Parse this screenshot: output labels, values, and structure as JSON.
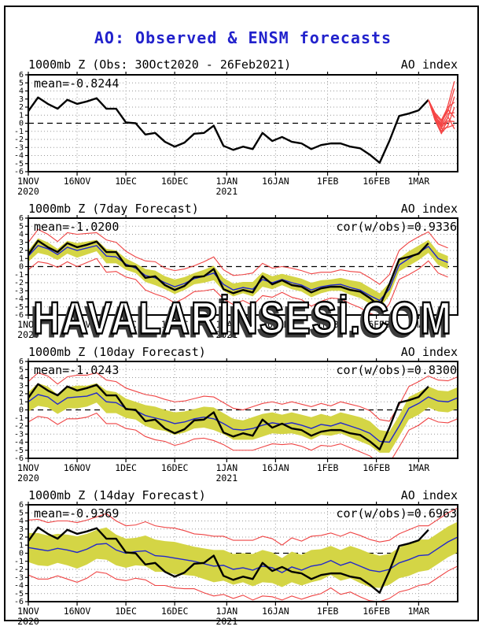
{
  "title": {
    "text": "AO: Observed & ENSM forecasts",
    "color": "#2222cc"
  },
  "watermark": {
    "text": "HAVALARİNSESİ.COM"
  },
  "colors": {
    "title": "#2222cc",
    "observed_line": "#000000",
    "ensemble_mean_line": "#2228cc",
    "spread_band": "#d4d545",
    "envelope_line": "#ef4444",
    "member_line": "#f54545",
    "gridline": "#999999",
    "zero_line": "#000000",
    "axis": "#000000"
  },
  "chart_data": {
    "type": "line",
    "y_axis": {
      "min": -6,
      "max": 6,
      "tick_step": 1,
      "tick_labels": [
        "6",
        "5",
        "4",
        "3",
        "2",
        "1",
        "0",
        "-1",
        "-2",
        "-3",
        "-4",
        "-5",
        "-6"
      ]
    },
    "x_axis": {
      "range_days": [
        0,
        132
      ],
      "ticks": [
        {
          "day": 0,
          "label": "1NOV",
          "year": "2020"
        },
        {
          "day": 15,
          "label": "16NOV"
        },
        {
          "day": 30,
          "label": "1DEC"
        },
        {
          "day": 45,
          "label": "16DEC"
        },
        {
          "day": 61,
          "label": "1JAN",
          "year": "2021"
        },
        {
          "day": 76,
          "label": "16JAN"
        },
        {
          "day": 92,
          "label": "1FEB"
        },
        {
          "day": 107,
          "label": "16FEB"
        },
        {
          "day": 120,
          "label": "1MAR"
        }
      ]
    },
    "observed": {
      "days_start": 0,
      "days_step": 3,
      "values": [
        1.5,
        3.2,
        2.4,
        1.8,
        2.9,
        2.4,
        2.7,
        3.1,
        1.8,
        1.8,
        0.1,
        0.0,
        -1.4,
        -1.2,
        -2.3,
        -2.9,
        -2.4,
        -1.3,
        -1.2,
        -0.3,
        -2.8,
        -3.3,
        -2.9,
        -3.2,
        -1.2,
        -2.2,
        -1.7,
        -2.3,
        -2.5,
        -3.2,
        -2.7,
        -2.5,
        -2.5,
        -2.9,
        -3.1,
        -3.9,
        -4.9,
        -2.2,
        0.9,
        1.2,
        1.6,
        2.9
      ]
    },
    "panels": [
      {
        "title_left": "1000mb Z (Obs: 30Oct2020 - 26Feb2021)",
        "title_right": "AO index",
        "mean_label": "mean=-0.8244",
        "cor_label": "",
        "forecast_members": {
          "days": [
            123,
            125,
            127,
            129,
            131
          ],
          "values": [
            [
              2.9,
              0.9,
              -0.2,
              2.2,
              5.2
            ],
            [
              2.9,
              1.1,
              0.2,
              1.5,
              4.3
            ],
            [
              2.9,
              0.7,
              -0.6,
              0.7,
              3.3
            ],
            [
              2.9,
              1.3,
              0.4,
              2.0,
              2.6
            ],
            [
              2.9,
              0.5,
              -1.2,
              -0.3,
              2.0
            ],
            [
              2.9,
              1.0,
              -0.4,
              1.2,
              1.3
            ],
            [
              2.9,
              0.8,
              0.0,
              1.7,
              0.7
            ],
            [
              2.9,
              0.6,
              -1.0,
              0.3,
              0.2
            ],
            [
              2.9,
              1.2,
              -0.7,
              -0.5,
              -0.2
            ],
            [
              2.9,
              0.4,
              -1.3,
              0.8,
              -0.7
            ]
          ]
        }
      },
      {
        "title_left": "1000mb Z (7day Forecast)",
        "title_right": "AO index",
        "mean_label": "mean=-1.0200",
        "cor_label": "cor(w/obs)=0.9336",
        "ens_mean": [
          1.3,
          2.6,
          2.2,
          1.5,
          2.4,
          2.0,
          2.3,
          2.6,
          1.3,
          1.2,
          0.3,
          -0.2,
          -1.1,
          -1.4,
          -2.0,
          -2.5,
          -2.1,
          -1.5,
          -1.2,
          -0.8,
          -2.2,
          -2.9,
          -2.6,
          -2.8,
          -1.6,
          -2.0,
          -1.6,
          -2.0,
          -2.3,
          -2.9,
          -2.5,
          -2.3,
          -2.2,
          -2.6,
          -2.9,
          -3.6,
          -4.2,
          -2.8,
          0.2,
          1.0,
          1.7,
          2.5,
          1.0,
          0.5
        ],
        "spread": [
          0.7,
          0.9,
          0.8,
          0.7,
          0.8,
          0.9,
          0.8,
          0.7,
          0.9,
          0.8,
          0.7,
          0.6,
          0.8,
          0.9,
          0.8,
          0.9,
          0.8,
          0.7,
          0.8,
          0.9,
          0.8,
          0.8,
          0.7,
          0.9,
          0.9,
          0.8,
          0.7,
          0.8,
          0.8,
          0.9,
          0.8,
          0.7,
          0.8,
          0.9,
          1.0,
          1.0,
          0.9,
          0.8,
          0.8,
          0.9,
          0.9,
          0.8,
          0.8,
          0.8
        ],
        "envelope": [
          1.7,
          2.0,
          1.8,
          1.6,
          1.8,
          2.0,
          1.8,
          1.6,
          2.0,
          1.8,
          1.6,
          1.4,
          1.8,
          2.0,
          1.8,
          2.0,
          1.8,
          1.6,
          1.8,
          2.0,
          1.8,
          1.8,
          1.6,
          2.0,
          2.0,
          1.8,
          1.6,
          1.8,
          1.8,
          2.0,
          1.8,
          1.6,
          1.8,
          2.0,
          2.2,
          2.2,
          2.0,
          1.8,
          1.8,
          2.0,
          2.0,
          1.8,
          1.8,
          1.8
        ]
      },
      {
        "title_left": "1000mb Z (10day Forecast)",
        "title_right": "AO index",
        "mean_label": "mean=-1.0243",
        "cor_label": "cor(w/obs)=0.8300",
        "ens_mean": [
          1.0,
          1.9,
          1.6,
          0.7,
          1.5,
          1.6,
          1.7,
          2.1,
          1.0,
          0.9,
          0.2,
          -0.1,
          -0.7,
          -1.0,
          -1.3,
          -1.7,
          -1.5,
          -1.1,
          -0.9,
          -1.1,
          -1.7,
          -2.4,
          -2.5,
          -2.3,
          -1.9,
          -1.6,
          -1.8,
          -1.6,
          -1.9,
          -2.3,
          -1.8,
          -2.0,
          -1.6,
          -2.0,
          -2.4,
          -2.9,
          -3.9,
          -4.0,
          -2.0,
          0.2,
          0.8,
          1.6,
          1.1,
          1.0,
          1.5
        ],
        "spread": [
          1.2,
          1.4,
          1.3,
          1.2,
          1.3,
          1.4,
          1.3,
          1.2,
          1.4,
          1.3,
          1.2,
          1.1,
          1.3,
          1.4,
          1.3,
          1.4,
          1.3,
          1.2,
          1.3,
          1.4,
          1.3,
          1.3,
          1.2,
          1.4,
          1.4,
          1.3,
          1.2,
          1.3,
          1.3,
          1.4,
          1.3,
          1.2,
          1.3,
          1.4,
          1.5,
          1.5,
          1.4,
          1.3,
          1.3,
          1.4,
          1.4,
          1.3,
          1.3,
          1.3,
          1.3
        ],
        "envelope": [
          2.5,
          2.7,
          2.6,
          2.5,
          2.6,
          2.7,
          2.6,
          2.5,
          2.7,
          2.6,
          2.5,
          2.4,
          2.6,
          2.7,
          2.6,
          2.7,
          2.6,
          2.5,
          2.6,
          2.7,
          2.6,
          2.6,
          2.5,
          2.7,
          2.7,
          2.6,
          2.5,
          2.6,
          2.6,
          2.7,
          2.6,
          2.5,
          2.6,
          2.7,
          2.8,
          2.8,
          2.7,
          2.6,
          2.6,
          2.7,
          2.7,
          2.6,
          2.6,
          2.6,
          2.6
        ]
      },
      {
        "title_left": "1000mb Z (14day Forecast)",
        "title_right": "AO index",
        "mean_label": "mean=-0.9369",
        "cor_label": "cor(w/obs)=0.6963",
        "ens_mean": [
          0.7,
          0.5,
          0.3,
          0.6,
          0.4,
          0.1,
          0.5,
          1.1,
          1.2,
          0.4,
          0.0,
          0.2,
          0.3,
          -0.3,
          -0.4,
          -0.6,
          -0.8,
          -1.0,
          -1.3,
          -1.6,
          -1.5,
          -2.0,
          -1.8,
          -2.1,
          -1.6,
          -1.8,
          -2.4,
          -1.7,
          -2.1,
          -1.6,
          -1.4,
          -0.9,
          -1.5,
          -1.1,
          -1.6,
          -2.1,
          -2.3,
          -2.0,
          -1.2,
          -0.8,
          -0.3,
          -0.2,
          0.6,
          1.4,
          2.0
        ],
        "spread": [
          1.8,
          2.0,
          1.9,
          1.8,
          1.9,
          2.0,
          1.9,
          1.8,
          2.0,
          1.9,
          1.8,
          1.7,
          1.9,
          2.0,
          1.9,
          2.0,
          1.9,
          1.8,
          1.9,
          2.0,
          1.9,
          1.9,
          1.8,
          2.0,
          2.0,
          1.9,
          1.8,
          1.9,
          1.9,
          2.0,
          1.9,
          1.8,
          1.9,
          2.0,
          2.1,
          2.1,
          2.0,
          1.9,
          1.9,
          2.0,
          2.0,
          1.9,
          1.9,
          1.9,
          1.9
        ],
        "envelope": [
          3.4,
          3.7,
          3.5,
          3.4,
          3.6,
          3.7,
          3.6,
          3.4,
          3.7,
          3.6,
          3.4,
          3.3,
          3.6,
          3.7,
          3.6,
          3.7,
          3.6,
          3.4,
          3.6,
          3.7,
          3.6,
          3.6,
          3.4,
          3.7,
          3.7,
          3.6,
          3.4,
          3.6,
          3.6,
          3.7,
          3.6,
          3.4,
          3.6,
          3.7,
          3.8,
          3.8,
          3.7,
          3.6,
          3.6,
          3.7,
          3.7,
          3.6,
          3.6,
          3.6,
          3.6
        ]
      }
    ]
  }
}
